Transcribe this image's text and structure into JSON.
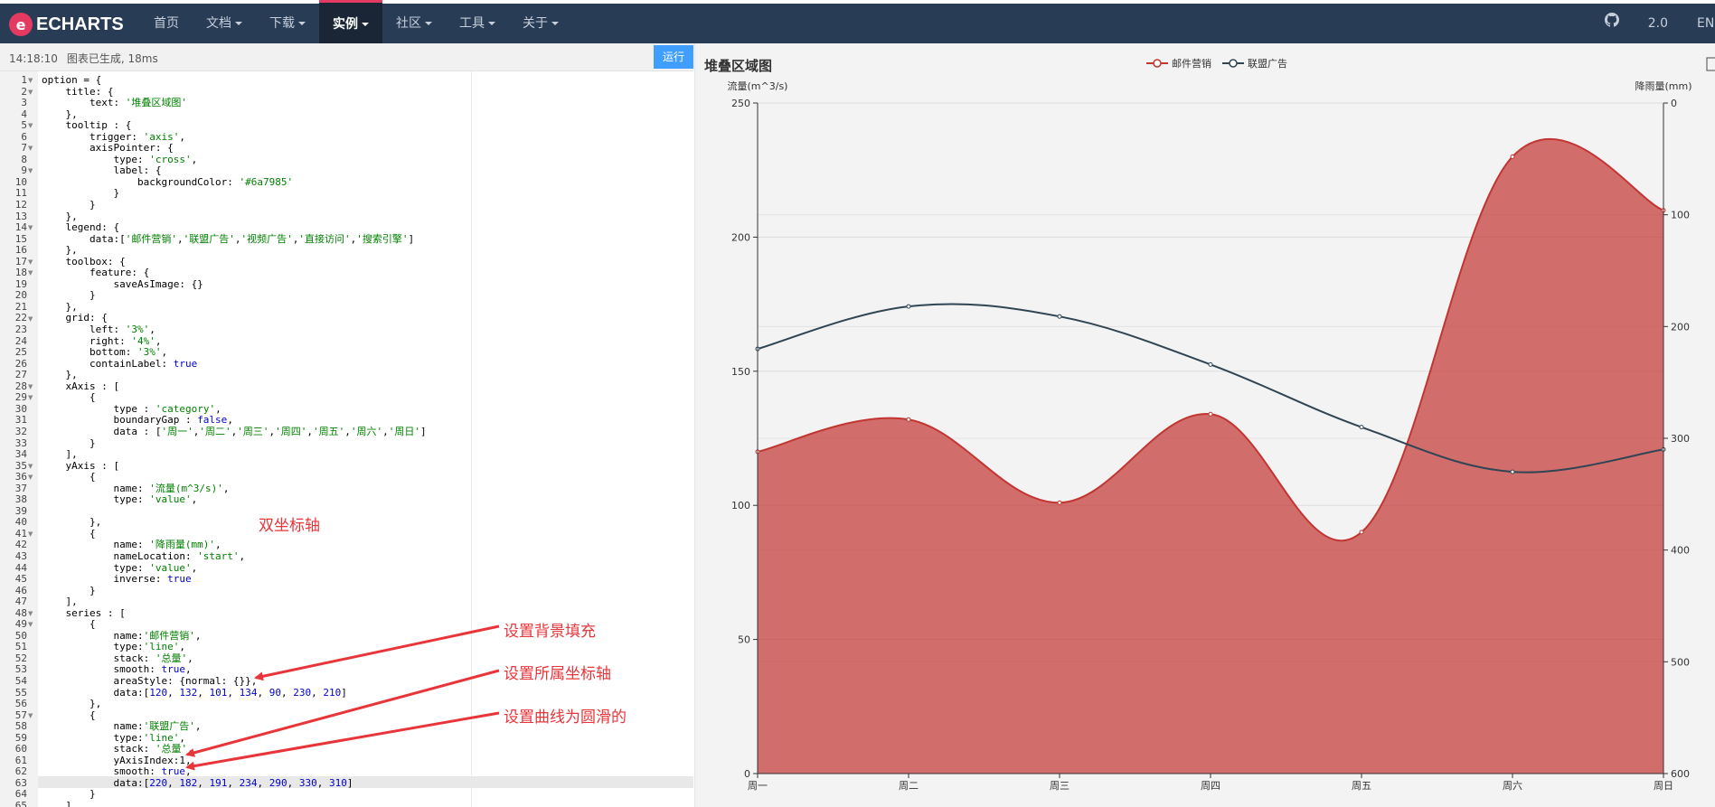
{
  "nav": {
    "logo_text": "ECHARTS",
    "items": [
      {
        "label": "首页",
        "dropdown": false,
        "active": false
      },
      {
        "label": "文档",
        "dropdown": true,
        "active": false
      },
      {
        "label": "下载",
        "dropdown": true,
        "active": false
      },
      {
        "label": "实例",
        "dropdown": true,
        "active": true
      },
      {
        "label": "社区",
        "dropdown": true,
        "active": false
      },
      {
        "label": "工具",
        "dropdown": true,
        "active": false
      },
      {
        "label": "关于",
        "dropdown": true,
        "active": false
      }
    ],
    "right": {
      "icon": "github-icon",
      "version": "2.0",
      "lang": "EN"
    }
  },
  "editor": {
    "status_time": "14:18:10",
    "status_msg": "图表已生成, 18ms",
    "run_label": "运行",
    "lines": [
      "option = {",
      "    title: {",
      "        text: '堆叠区域图'",
      "    },",
      "    tooltip : {",
      "        trigger: 'axis',",
      "        axisPointer: {",
      "            type: 'cross',",
      "            label: {",
      "                backgroundColor: '#6a7985'",
      "            }",
      "        }",
      "    },",
      "    legend: {",
      "        data:['邮件营销','联盟广告','视频广告','直接访问','搜索引擎']",
      "    },",
      "    toolbox: {",
      "        feature: {",
      "            saveAsImage: {}",
      "        }",
      "    },",
      "    grid: {",
      "        left: '3%',",
      "        right: '4%',",
      "        bottom: '3%',",
      "        containLabel: true",
      "    },",
      "    xAxis : [",
      "        {",
      "            type : 'category',",
      "            boundaryGap : false,",
      "            data : ['周一','周二','周三','周四','周五','周六','周日']",
      "        }",
      "    ],",
      "    yAxis : [",
      "        {",
      "            name: '流量(m^3/s)',",
      "            type: 'value',",
      "",
      "        },",
      "        {",
      "            name: '降雨量(mm)',",
      "            nameLocation: 'start',",
      "            type: 'value',",
      "            inverse: true",
      "        }",
      "    ],",
      "    series : [",
      "        {",
      "            name:'邮件营销',",
      "            type:'line',",
      "            stack: '总量',",
      "            smooth: true,",
      "            areaStyle: {normal: {}},",
      "            data:[120, 132, 101, 134, 90, 230, 210]",
      "        },",
      "        {",
      "            name:'联盟广告',",
      "            type:'line',",
      "            stack: '总量',",
      "            yAxisIndex:1,",
      "            smooth: true,",
      "            data:[220, 182, 191, 234, 290, 330, 310]",
      "        }",
      "    ]"
    ],
    "fold_lines": [
      1,
      2,
      5,
      7,
      9,
      14,
      17,
      18,
      22,
      28,
      29,
      35,
      36,
      41,
      48,
      49,
      57
    ],
    "highlight_line": 63
  },
  "annotations": {
    "dual_axis": "双坐标轴",
    "area_fill": "设置背景填充",
    "axis_index": "设置所属坐标轴",
    "smooth": "设置曲线为圆滑的"
  },
  "chart_data": {
    "type": "area",
    "title": "堆叠区域图",
    "legend": [
      "邮件营销",
      "联盟广告"
    ],
    "legend_position": "top-center",
    "categories": [
      "周一",
      "周二",
      "周三",
      "周四",
      "周五",
      "周六",
      "周日"
    ],
    "y_axes": [
      {
        "name": "流量(m^3/s)",
        "min": 0,
        "max": 250,
        "ticks": [
          0,
          50,
          100,
          150,
          200,
          250
        ],
        "position": "left"
      },
      {
        "name": "降雨量(mm)",
        "min": 0,
        "max": 600,
        "ticks": [
          0,
          100,
          200,
          300,
          400,
          500,
          600
        ],
        "position": "right",
        "inverse": true
      }
    ],
    "series": [
      {
        "name": "邮件营销",
        "axis": 0,
        "values": [
          120,
          132,
          101,
          134,
          90,
          230,
          210
        ],
        "color": "#c23531",
        "area": true
      },
      {
        "name": "联盟广告",
        "axis": 1,
        "values": [
          220,
          182,
          191,
          234,
          290,
          330,
          310
        ],
        "color": "#2f4554",
        "area": false
      }
    ],
    "grid": true
  }
}
